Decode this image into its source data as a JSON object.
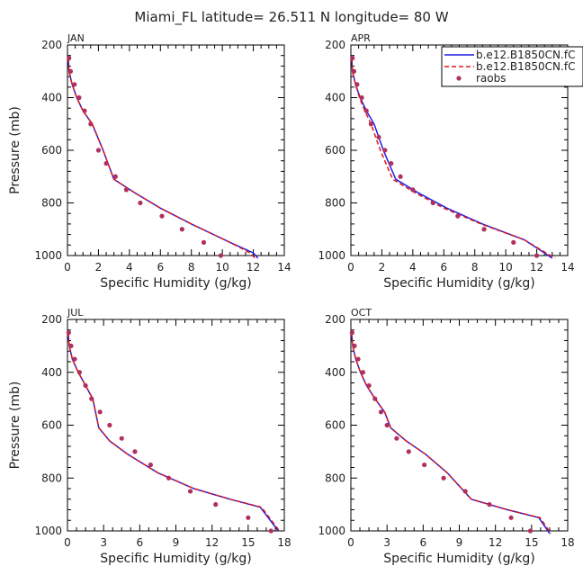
{
  "title": "Miami_FL  latitude= 26.511 N longitude= 80 W",
  "legend": {
    "placement": "top-right",
    "entries": [
      {
        "label": "b.e12.B1850CN.fC",
        "color": "#1f1fe6",
        "style": "solid"
      },
      {
        "label": "b.e12.B1850CN.fC",
        "color": "#e01818",
        "style": "dashed"
      },
      {
        "label": "raobs",
        "color": "#b03060",
        "style": "marker"
      }
    ]
  },
  "chart_data": [
    {
      "type": "line",
      "panel_title": "JAN",
      "xlabel": "Specific Humidity (g/kg)",
      "ylabel": "Pressure (mb)",
      "xlim": [
        0,
        14
      ],
      "ylim": [
        1000,
        200
      ],
      "xticks": [
        0,
        2,
        4,
        6,
        8,
        10,
        12,
        14
      ],
      "yticks": [
        200,
        400,
        600,
        800,
        1000
      ],
      "series": [
        {
          "name": "b.e12.B1850CN.fC",
          "color": "#1f1fe6",
          "style": "solid",
          "x": [
            0.05,
            0.1,
            0.3,
            0.6,
            1.0,
            1.6,
            2.3,
            3.0,
            4.3,
            6.0,
            8.0,
            10.5,
            12.0,
            12.3
          ],
          "y": [
            250,
            300,
            350,
            400,
            450,
            500,
            600,
            710,
            760,
            820,
            880,
            950,
            990,
            1010
          ]
        },
        {
          "name": "b.e12.B1850CN.fC",
          "color": "#e01818",
          "style": "dashed",
          "x": [
            0.05,
            0.1,
            0.3,
            0.6,
            1.0,
            1.6,
            2.3,
            3.0,
            4.3,
            6.0,
            8.0,
            10.5,
            11.8,
            12.1
          ],
          "y": [
            250,
            300,
            350,
            400,
            450,
            500,
            600,
            710,
            760,
            820,
            880,
            950,
            990,
            1010
          ]
        },
        {
          "name": "raobs",
          "color": "#b03060",
          "style": "marker",
          "x": [
            0.1,
            0.2,
            0.45,
            0.75,
            1.1,
            1.5,
            2.0,
            2.5,
            3.1,
            3.8,
            4.7,
            6.1,
            7.4,
            8.8,
            9.9
          ],
          "y": [
            250,
            300,
            350,
            400,
            450,
            500,
            600,
            650,
            700,
            750,
            800,
            850,
            900,
            950,
            1000
          ]
        }
      ]
    },
    {
      "type": "line",
      "panel_title": "APR",
      "xlabel": "Specific Humidity (g/kg)",
      "ylabel": "",
      "xlim": [
        0,
        14
      ],
      "ylim": [
        1000,
        200
      ],
      "xticks": [
        0,
        2,
        4,
        6,
        8,
        10,
        12,
        14
      ],
      "yticks": [
        200,
        400,
        600,
        800,
        1000
      ],
      "series": [
        {
          "name": "b.e12.B1850CN.fC",
          "color": "#1f1fe6",
          "style": "solid",
          "x": [
            0.05,
            0.1,
            0.3,
            0.6,
            1.0,
            1.5,
            2.1,
            2.9,
            4.3,
            6.2,
            8.5,
            11.2,
            12.5,
            13.0
          ],
          "y": [
            250,
            300,
            350,
            400,
            450,
            500,
            600,
            710,
            760,
            820,
            880,
            940,
            990,
            1010
          ]
        },
        {
          "name": "b.e12.B1850CN.fC",
          "color": "#e01818",
          "style": "dashed",
          "x": [
            0.05,
            0.1,
            0.3,
            0.55,
            0.9,
            1.3,
            1.9,
            2.7,
            4.1,
            6.0,
            8.4,
            11.2,
            12.6,
            13.2
          ],
          "y": [
            250,
            300,
            350,
            400,
            450,
            500,
            600,
            710,
            760,
            820,
            880,
            940,
            990,
            1010
          ]
        },
        {
          "name": "raobs",
          "color": "#b03060",
          "style": "marker",
          "x": [
            0.1,
            0.2,
            0.4,
            0.7,
            1.0,
            1.3,
            1.8,
            2.2,
            2.6,
            3.2,
            4.0,
            5.3,
            6.9,
            8.6,
            10.5,
            12.0
          ],
          "y": [
            250,
            300,
            350,
            400,
            450,
            500,
            550,
            600,
            650,
            700,
            750,
            800,
            850,
            900,
            950,
            1000
          ]
        }
      ]
    },
    {
      "type": "line",
      "panel_title": "JUL",
      "xlabel": "Specific Humidity (g/kg)",
      "ylabel": "Pressure (mb)",
      "xlim": [
        0,
        18
      ],
      "ylim": [
        1000,
        200
      ],
      "xticks": [
        0,
        3,
        6,
        9,
        12,
        15,
        18
      ],
      "yticks": [
        200,
        400,
        600,
        800,
        1000
      ],
      "series": [
        {
          "name": "b.e12.B1850CN.fC",
          "color": "#1f1fe6",
          "style": "solid",
          "x": [
            0.05,
            0.15,
            0.4,
            0.9,
            1.5,
            2.1,
            2.6,
            3.5,
            5.0,
            7.5,
            10.5,
            13.5,
            16.0,
            17.5
          ],
          "y": [
            250,
            300,
            350,
            400,
            450,
            500,
            610,
            660,
            710,
            780,
            840,
            880,
            910,
            1000
          ]
        },
        {
          "name": "b.e12.B1850CN.fC",
          "color": "#e01818",
          "style": "dashed",
          "x": [
            0.05,
            0.15,
            0.4,
            0.9,
            1.5,
            2.1,
            2.6,
            3.5,
            5.0,
            7.5,
            10.5,
            13.5,
            16.1,
            17.6
          ],
          "y": [
            250,
            300,
            350,
            400,
            450,
            500,
            610,
            660,
            710,
            780,
            840,
            880,
            910,
            1000
          ]
        },
        {
          "name": "raobs",
          "color": "#b03060",
          "style": "marker",
          "x": [
            0.1,
            0.3,
            0.6,
            1.0,
            1.5,
            2.0,
            2.7,
            3.5,
            4.5,
            5.6,
            6.9,
            8.4,
            10.2,
            12.3,
            15.0,
            16.9
          ],
          "y": [
            250,
            300,
            350,
            400,
            450,
            500,
            550,
            600,
            650,
            700,
            750,
            800,
            850,
            900,
            950,
            1000
          ]
        }
      ]
    },
    {
      "type": "line",
      "panel_title": "OCT",
      "xlabel": "Specific Humidity (g/kg)",
      "ylabel": "",
      "xlim": [
        0,
        18
      ],
      "ylim": [
        1000,
        200
      ],
      "xticks": [
        0,
        3,
        6,
        9,
        12,
        15,
        18
      ],
      "yticks": [
        200,
        400,
        600,
        800,
        1000
      ],
      "series": [
        {
          "name": "b.e12.B1850CN.fC",
          "color": "#1f1fe6",
          "style": "solid",
          "x": [
            0.05,
            0.15,
            0.4,
            0.8,
            1.3,
            2.0,
            2.8,
            3.3,
            4.6,
            6.2,
            8.0,
            10.0,
            13.0,
            15.6,
            16.5
          ],
          "y": [
            250,
            300,
            350,
            400,
            450,
            500,
            550,
            610,
            660,
            710,
            780,
            880,
            920,
            950,
            1010
          ]
        },
        {
          "name": "b.e12.B1850CN.fC",
          "color": "#e01818",
          "style": "dashed",
          "x": [
            0.05,
            0.15,
            0.4,
            0.8,
            1.3,
            2.0,
            2.8,
            3.3,
            4.6,
            6.2,
            8.0,
            10.0,
            13.0,
            15.7,
            16.6
          ],
          "y": [
            250,
            300,
            350,
            400,
            450,
            500,
            550,
            610,
            660,
            710,
            780,
            880,
            920,
            950,
            1010
          ]
        },
        {
          "name": "raobs",
          "color": "#b03060",
          "style": "marker",
          "x": [
            0.1,
            0.3,
            0.6,
            1.0,
            1.5,
            2.0,
            2.5,
            3.0,
            3.8,
            4.8,
            6.1,
            7.7,
            9.5,
            11.5,
            13.3,
            14.9
          ],
          "y": [
            250,
            300,
            350,
            400,
            450,
            500,
            550,
            600,
            650,
            700,
            750,
            800,
            850,
            900,
            950,
            1000
          ]
        }
      ]
    }
  ]
}
